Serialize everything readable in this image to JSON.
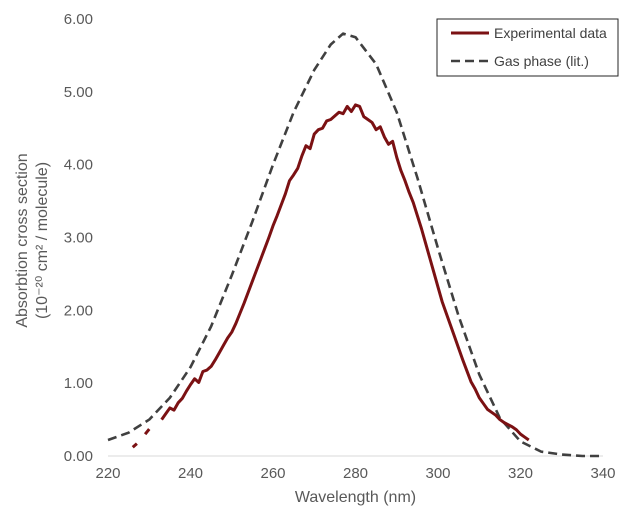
{
  "chart_data": {
    "type": "line",
    "xlabel": "Wavelength (nm)",
    "ylabel_line1": "Absorbtion cross section",
    "ylabel_line2": "(10⁻²⁰ cm² / molecule)",
    "xlim": [
      220,
      340
    ],
    "ylim": [
      0,
      6
    ],
    "x_ticks": [
      "220",
      "240",
      "260",
      "280",
      "300",
      "320",
      "340"
    ],
    "y_ticks": [
      "0.00",
      "1.00",
      "2.00",
      "3.00",
      "4.00",
      "5.00",
      "6.00"
    ],
    "grid": false,
    "legend_position": "top-right",
    "series": [
      {
        "name": "Experimental data",
        "style": "solid",
        "color": "#7b1113",
        "points": [
          [
            226,
            0.12
          ],
          [
            227,
            0.17
          ],
          [
            229,
            0.3
          ],
          [
            230,
            0.37
          ],
          [
            233,
            0.5
          ],
          [
            234,
            0.58
          ],
          [
            235,
            0.66
          ],
          [
            236,
            0.63
          ],
          [
            237,
            0.73
          ],
          [
            238,
            0.79
          ],
          [
            239,
            0.89
          ],
          [
            240,
            0.98
          ],
          [
            241,
            1.06
          ],
          [
            242,
            1.01
          ],
          [
            243,
            1.16
          ],
          [
            244,
            1.18
          ],
          [
            245,
            1.23
          ],
          [
            246,
            1.32
          ],
          [
            247,
            1.42
          ],
          [
            248,
            1.52
          ],
          [
            249,
            1.62
          ],
          [
            250,
            1.7
          ],
          [
            251,
            1.82
          ],
          [
            252,
            1.96
          ],
          [
            253,
            2.1
          ],
          [
            254,
            2.25
          ],
          [
            255,
            2.4
          ],
          [
            256,
            2.55
          ],
          [
            257,
            2.7
          ],
          [
            258,
            2.85
          ],
          [
            259,
            3.0
          ],
          [
            260,
            3.16
          ],
          [
            261,
            3.3
          ],
          [
            262,
            3.45
          ],
          [
            263,
            3.6
          ],
          [
            264,
            3.78
          ],
          [
            265,
            3.86
          ],
          [
            266,
            3.95
          ],
          [
            267,
            4.12
          ],
          [
            268,
            4.26
          ],
          [
            269,
            4.22
          ],
          [
            270,
            4.42
          ],
          [
            271,
            4.48
          ],
          [
            272,
            4.5
          ],
          [
            273,
            4.6
          ],
          [
            274,
            4.62
          ],
          [
            275,
            4.67
          ],
          [
            276,
            4.72
          ],
          [
            277,
            4.7
          ],
          [
            278,
            4.8
          ],
          [
            279,
            4.73
          ],
          [
            280,
            4.82
          ],
          [
            281,
            4.8
          ],
          [
            282,
            4.66
          ],
          [
            283,
            4.62
          ],
          [
            284,
            4.58
          ],
          [
            285,
            4.48
          ],
          [
            286,
            4.52
          ],
          [
            287,
            4.38
          ],
          [
            288,
            4.28
          ],
          [
            289,
            4.32
          ],
          [
            290,
            4.1
          ],
          [
            291,
            3.92
          ],
          [
            292,
            3.78
          ],
          [
            293,
            3.62
          ],
          [
            294,
            3.48
          ],
          [
            295,
            3.3
          ],
          [
            296,
            3.12
          ],
          [
            297,
            2.92
          ],
          [
            298,
            2.72
          ],
          [
            299,
            2.52
          ],
          [
            300,
            2.32
          ],
          [
            301,
            2.12
          ],
          [
            302,
            1.96
          ],
          [
            303,
            1.8
          ],
          [
            304,
            1.64
          ],
          [
            305,
            1.48
          ],
          [
            306,
            1.32
          ],
          [
            307,
            1.17
          ],
          [
            308,
            1.02
          ],
          [
            309,
            0.92
          ],
          [
            310,
            0.8
          ],
          [
            311,
            0.72
          ],
          [
            312,
            0.64
          ],
          [
            313,
            0.6
          ],
          [
            314,
            0.56
          ],
          [
            315,
            0.5
          ],
          [
            316,
            0.46
          ],
          [
            317,
            0.43
          ],
          [
            318,
            0.4
          ],
          [
            319,
            0.36
          ],
          [
            320,
            0.3
          ],
          [
            321,
            0.26
          ],
          [
            322,
            0.22
          ]
        ]
      },
      {
        "name": "Gas phase (lit.)",
        "style": "dashed",
        "color": "#404040",
        "points": [
          [
            220,
            0.22
          ],
          [
            225,
            0.32
          ],
          [
            230,
            0.5
          ],
          [
            235,
            0.8
          ],
          [
            240,
            1.22
          ],
          [
            245,
            1.78
          ],
          [
            250,
            2.48
          ],
          [
            255,
            3.22
          ],
          [
            260,
            4.0
          ],
          [
            265,
            4.72
          ],
          [
            270,
            5.3
          ],
          [
            274,
            5.65
          ],
          [
            277,
            5.8
          ],
          [
            280,
            5.75
          ],
          [
            285,
            5.38
          ],
          [
            290,
            4.72
          ],
          [
            295,
            3.82
          ],
          [
            300,
            2.85
          ],
          [
            305,
            1.92
          ],
          [
            310,
            1.12
          ],
          [
            315,
            0.52
          ],
          [
            320,
            0.2
          ],
          [
            325,
            0.06
          ],
          [
            330,
            0.02
          ],
          [
            335,
            0.0
          ],
          [
            340,
            0.0
          ]
        ]
      }
    ]
  }
}
